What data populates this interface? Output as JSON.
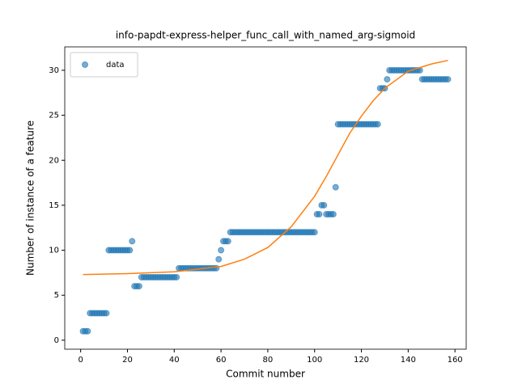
{
  "chart_data": {
    "type": "scatter",
    "title": "info-papdt-express-helper_func_call_with_named_arg-sigmoid",
    "x_label": "Commit number",
    "y_label": "Number of instance of a feature",
    "xlim": [
      -6.8,
      164.8
    ],
    "xticks": [
      0,
      20,
      40,
      60,
      80,
      100,
      120,
      140,
      160
    ],
    "ylim": [
      -1.0,
      32.6
    ],
    "yticks": [
      0,
      5,
      10,
      15,
      20,
      25,
      30
    ],
    "legend": "upper left",
    "series": [
      {
        "name": "data",
        "type": "scatter",
        "color": "#1f77b4",
        "x": [
          1,
          2,
          3,
          4,
          5,
          6,
          7,
          8,
          9,
          10,
          11,
          12,
          13,
          14,
          15,
          16,
          17,
          18,
          19,
          20,
          21,
          22,
          23,
          24,
          25,
          26,
          27,
          28,
          29,
          30,
          31,
          32,
          33,
          34,
          35,
          36,
          37,
          38,
          39,
          40,
          41,
          42,
          43,
          44,
          45,
          46,
          47,
          48,
          49,
          50,
          51,
          52,
          53,
          54,
          55,
          56,
          57,
          58,
          59,
          60,
          61,
          62,
          63,
          64,
          65,
          66,
          67,
          68,
          69,
          70,
          71,
          72,
          73,
          74,
          75,
          76,
          77,
          78,
          79,
          80,
          81,
          82,
          83,
          84,
          85,
          86,
          87,
          88,
          89,
          90,
          91,
          92,
          93,
          94,
          95,
          96,
          97,
          98,
          99,
          100,
          101,
          102,
          103,
          104,
          105,
          106,
          107,
          108,
          109,
          110,
          111,
          112,
          113,
          114,
          115,
          116,
          117,
          118,
          119,
          120,
          121,
          122,
          123,
          124,
          125,
          126,
          127,
          128,
          129,
          130,
          131,
          132,
          133,
          134,
          135,
          136,
          137,
          138,
          139,
          140,
          141,
          142,
          143,
          144,
          145,
          146,
          147,
          148,
          149,
          150,
          151,
          152,
          153,
          154,
          155,
          156,
          157
        ],
        "values": [
          1,
          1,
          1,
          3,
          3,
          3,
          3,
          3,
          3,
          3,
          3,
          10,
          10,
          10,
          10,
          10,
          10,
          10,
          10,
          10,
          10,
          11,
          6,
          6,
          6,
          7,
          7,
          7,
          7,
          7,
          7,
          7,
          7,
          7,
          7,
          7,
          7,
          7,
          7,
          7,
          7,
          8,
          8,
          8,
          8,
          8,
          8,
          8,
          8,
          8,
          8,
          8,
          8,
          8,
          8,
          8,
          8,
          8,
          9,
          10,
          11,
          11,
          11,
          12,
          12,
          12,
          12,
          12,
          12,
          12,
          12,
          12,
          12,
          12,
          12,
          12,
          12,
          12,
          12,
          12,
          12,
          12,
          12,
          12,
          12,
          12,
          12,
          12,
          12,
          12,
          12,
          12,
          12,
          12,
          12,
          12,
          12,
          12,
          12,
          12,
          14,
          14,
          15,
          15,
          14,
          14,
          14,
          14,
          17,
          24,
          24,
          24,
          24,
          24,
          24,
          24,
          24,
          24,
          24,
          24,
          24,
          24,
          24,
          24,
          24,
          24,
          24,
          28,
          28,
          28,
          29,
          30,
          30,
          30,
          30,
          30,
          30,
          30,
          30,
          30,
          30,
          30,
          30,
          30,
          30,
          29,
          29,
          29,
          29,
          29,
          29,
          29,
          29,
          29,
          29,
          29,
          29
        ]
      },
      {
        "type": "line",
        "color": "#ff7f0e",
        "x": [
          1,
          20,
          40,
          60,
          70,
          80,
          90,
          100,
          105,
          110,
          115,
          120,
          125,
          130,
          140,
          150,
          157
        ],
        "values": [
          7.3,
          7.4,
          7.6,
          8.2,
          9.0,
          10.3,
          12.6,
          16.0,
          18.2,
          20.6,
          23.0,
          24.9,
          26.6,
          28.0,
          29.9,
          30.7,
          31.1
        ]
      }
    ]
  }
}
